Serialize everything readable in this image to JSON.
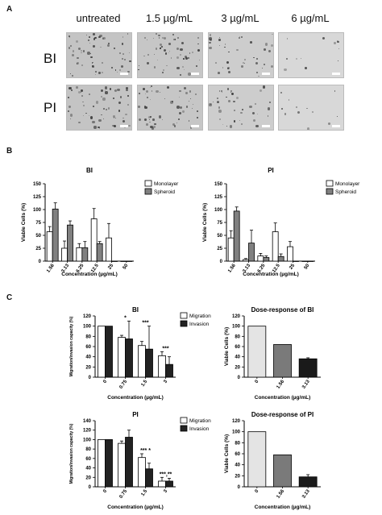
{
  "panel_a": {
    "letter": "A",
    "columns": [
      "untreated",
      "1.5 µg/mL",
      "3 µg/mL",
      "6 µg/mL"
    ],
    "rows": [
      "BI",
      "PI"
    ]
  },
  "panel_b": {
    "letter": "B"
  },
  "panel_c": {
    "letter": "C"
  },
  "chart_data": [
    {
      "id": "b-bi",
      "type": "bar",
      "title": "BI",
      "xlabel": "Concentration (µg/mL)",
      "ylabel": "Viable Cells (%)",
      "categories": [
        "1.56",
        "3.13",
        "6.25",
        "12.5",
        "25",
        "50"
      ],
      "ylim": [
        0,
        150
      ],
      "yticks": [
        0,
        25,
        50,
        75,
        100,
        125,
        150
      ],
      "series": [
        {
          "name": "Monolayer",
          "color": "#ffffff",
          "values": [
            57,
            25,
            26,
            82,
            45,
            0
          ],
          "errors": [
            10,
            14,
            8,
            20,
            28,
            0
          ]
        },
        {
          "name": "Spheroid",
          "color": "#808080",
          "values": [
            101,
            70,
            26,
            34,
            0,
            0
          ],
          "errors": [
            12,
            8,
            12,
            4,
            0,
            0
          ]
        }
      ],
      "legend": "top-right"
    },
    {
      "id": "b-pi",
      "type": "bar",
      "title": "PI",
      "xlabel": "Concentration (µg/mL)",
      "ylabel": "Viable Cells (%)",
      "categories": [
        "1.56",
        "3.13",
        "6.25",
        "12.5",
        "25",
        "50"
      ],
      "ylim": [
        0,
        150
      ],
      "yticks": [
        0,
        25,
        50,
        75,
        100,
        125,
        150
      ],
      "series": [
        {
          "name": "Monolayer",
          "color": "#ffffff",
          "values": [
            45,
            3,
            10,
            57,
            28,
            0
          ],
          "errors": [
            14,
            2,
            5,
            17,
            10,
            0
          ]
        },
        {
          "name": "Spheroid",
          "color": "#808080",
          "values": [
            97,
            35,
            7,
            9,
            0,
            0
          ],
          "errors": [
            8,
            25,
            3,
            5,
            0,
            0
          ]
        }
      ],
      "legend": "top-right"
    },
    {
      "id": "c-bi",
      "type": "bar",
      "title": "BI",
      "xlabel": "Concentration (µg/mL)",
      "ylabel": "Migration/invasion capacity (%)",
      "categories": [
        "0",
        "0.75",
        "1.5",
        "3"
      ],
      "ylim": [
        0,
        120
      ],
      "yticks": [
        0,
        20,
        40,
        60,
        80,
        100,
        120
      ],
      "series": [
        {
          "name": "Migration",
          "color": "#ffffff",
          "values": [
            100,
            78,
            62,
            42
          ],
          "errors": [
            0,
            4,
            8,
            8
          ]
        },
        {
          "name": "Invasion",
          "color": "#222222",
          "values": [
            100,
            75,
            55,
            25
          ],
          "errors": [
            0,
            35,
            45,
            15
          ]
        }
      ],
      "annotations": [
        "",
        "*",
        "***",
        "***"
      ],
      "legend": "top-right"
    },
    {
      "id": "c-bi-dose",
      "type": "bar",
      "title": "Dose-response of BI",
      "xlabel": "Concentration (µg/mL)",
      "ylabel": "Viable Cells (%)",
      "categories": [
        "0",
        "1.56",
        "3.13"
      ],
      "ylim": [
        0,
        120
      ],
      "yticks": [
        0,
        20,
        40,
        60,
        80,
        100,
        120
      ],
      "series": [
        {
          "name": "",
          "colors": [
            "#e4e4e4",
            "#7a7a7a",
            "#1a1a1a"
          ],
          "values": [
            100,
            64,
            36
          ],
          "errors": [
            0,
            0,
            2
          ]
        }
      ]
    },
    {
      "id": "c-pi",
      "type": "bar",
      "title": "PI",
      "xlabel": "Concentration (µg/mL)",
      "ylabel": "Migration/invasion capacity (%)",
      "categories": [
        "0",
        "0.75",
        "1.5",
        "3"
      ],
      "ylim": [
        0,
        140
      ],
      "yticks": [
        0,
        20,
        40,
        60,
        80,
        100,
        120,
        140
      ],
      "series": [
        {
          "name": "Migration",
          "color": "#ffffff",
          "values": [
            100,
            92,
            62,
            12
          ],
          "errors": [
            0,
            5,
            8,
            8
          ]
        },
        {
          "name": "Invasion",
          "color": "#222222",
          "values": [
            100,
            105,
            38,
            12
          ],
          "errors": [
            0,
            15,
            12,
            6
          ]
        }
      ],
      "annotations": [
        "",
        "",
        "*** *",
        "***,**"
      ],
      "legend": "top-right"
    },
    {
      "id": "c-pi-dose",
      "type": "bar",
      "title": "Dose-response of PI",
      "xlabel": "Concentration (µg/mL)",
      "ylabel": "Viable Cells (%)",
      "categories": [
        "0",
        "1.56",
        "3.13"
      ],
      "ylim": [
        0,
        120
      ],
      "yticks": [
        0,
        20,
        40,
        60,
        80,
        100,
        120
      ],
      "series": [
        {
          "name": "",
          "colors": [
            "#e4e4e4",
            "#7a7a7a",
            "#1a1a1a"
          ],
          "values": [
            100,
            58,
            18
          ],
          "errors": [
            0,
            0,
            4
          ]
        }
      ]
    }
  ]
}
